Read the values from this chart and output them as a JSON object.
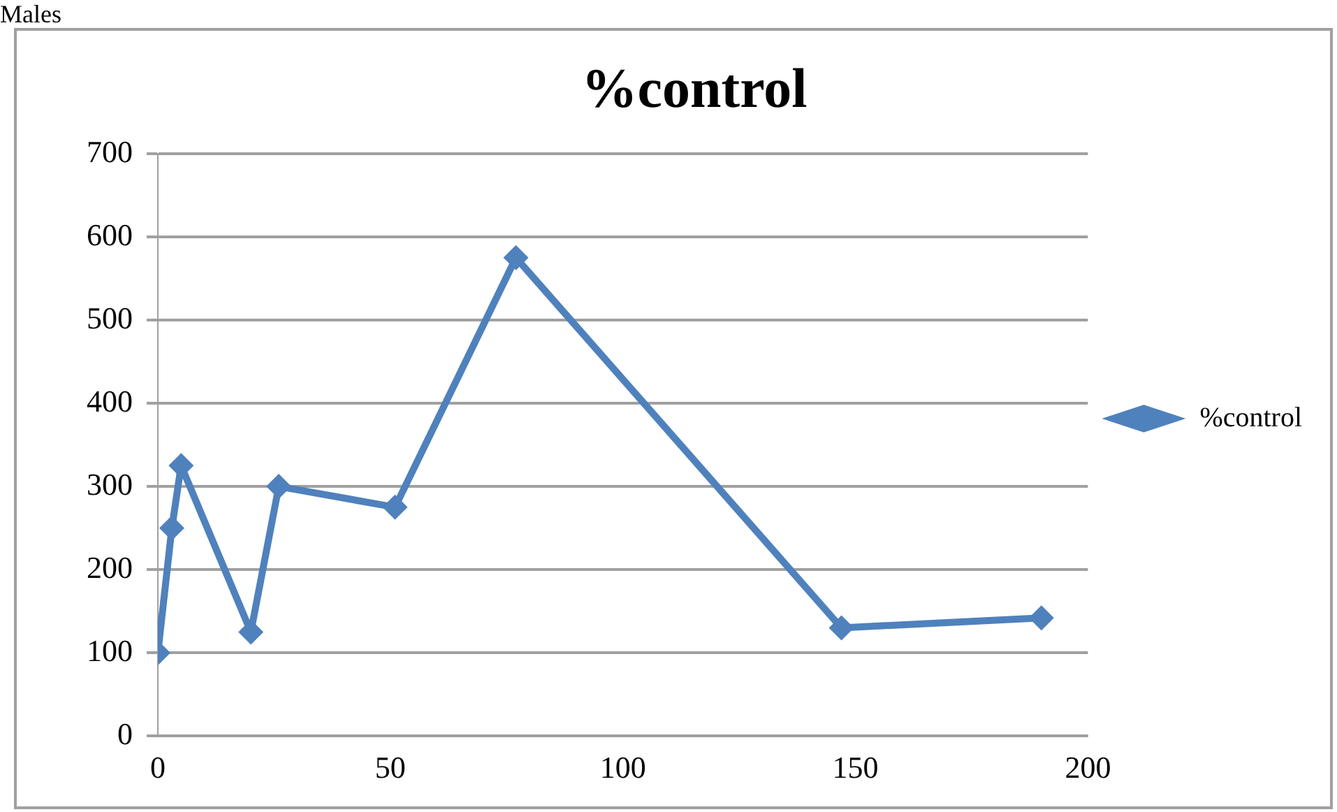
{
  "chart_data": {
    "type": "line",
    "title": "%control",
    "annotations": [
      "Males"
    ],
    "x": [
      0,
      3,
      5,
      20,
      26,
      51,
      77,
      147,
      190
    ],
    "series": [
      {
        "name": "%control",
        "color": "#4f81bd",
        "values": [
          100,
          250,
          325,
          125,
          300,
          275,
          575,
          130,
          142
        ]
      }
    ],
    "xlim": [
      0,
      200
    ],
    "xticks": [
      0,
      50,
      100,
      150,
      200
    ],
    "ylim": [
      0,
      700
    ],
    "yticks": [
      0,
      100,
      200,
      300,
      400,
      500,
      600,
      700
    ],
    "grid": "y",
    "legend": "right",
    "marker": "diamond",
    "line_style": "solid"
  }
}
